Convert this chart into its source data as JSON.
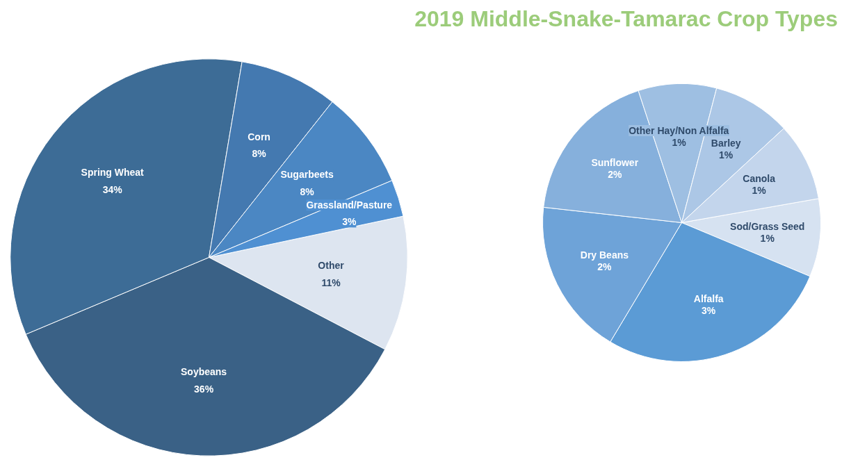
{
  "chart_data": [
    {
      "type": "pie",
      "title": "2019 Middle-Snake-Tamarac Crop Types",
      "categories": [
        "Other",
        "Soybeans",
        "Spring Wheat",
        "Corn",
        "Sugarbeets",
        "Grassland/Pasture"
      ],
      "values": [
        11,
        36,
        34,
        8,
        8,
        3
      ],
      "colors": [
        "#dde5f0",
        "#3a6186",
        "#3d6c96",
        "#4479b0",
        "#4b87c3",
        "#4f90d2"
      ],
      "value_labels": [
        "11%",
        "36%",
        "34%",
        "8%",
        "8%",
        "3%"
      ]
    },
    {
      "type": "pie",
      "categories": [
        "Sod/Grass Seed",
        "Alfalfa",
        "Dry Beans",
        "Sunflower",
        "Other Hay/Non Alfalfa",
        "Barley",
        "Canola"
      ],
      "values": [
        1,
        3,
        2,
        2,
        1,
        1,
        1
      ],
      "colors": [
        "#d6e2f1",
        "#5b9bd5",
        "#6ea3d8",
        "#86b0dc",
        "#9ebfe2",
        "#acc7e6",
        "#c3d5ec"
      ],
      "value_labels": [
        "1%",
        "3%",
        "2%",
        "2%",
        "1%",
        "1%",
        "1%"
      ]
    }
  ]
}
